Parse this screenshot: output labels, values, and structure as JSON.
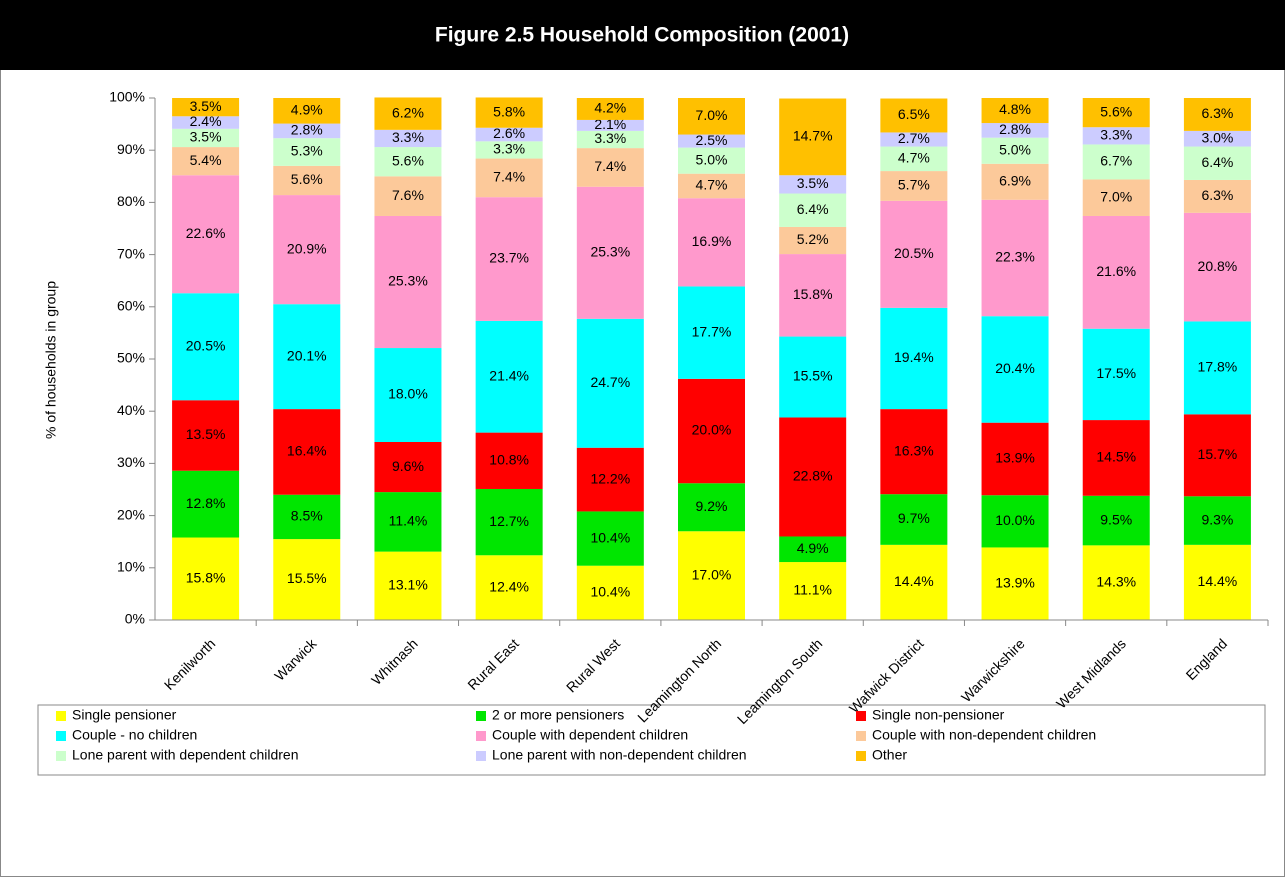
{
  "chart_data": {
    "type": "stacked_bar",
    "title": "Figure 2.5 Household Composition (2001)",
    "y_label": "% of households in group",
    "categories": [
      "Kenilworth",
      "Warwick",
      "Whitnash",
      "Rural East",
      "Rural West",
      "Leamington North",
      "Leamington South",
      "Wafwick District",
      "Warwickshire",
      "West Midlands",
      "England"
    ],
    "ylim": [
      0,
      100
    ],
    "yticks": [
      {
        "value": 0,
        "label": "0%"
      },
      {
        "value": 10,
        "label": "10%"
      },
      {
        "value": 20,
        "label": "20%"
      },
      {
        "value": 30,
        "label": "30%"
      },
      {
        "value": 40,
        "label": "40%"
      },
      {
        "value": 50,
        "label": "50%"
      },
      {
        "value": 60,
        "label": "60%"
      },
      {
        "value": 70,
        "label": "70%"
      },
      {
        "value": 80,
        "label": "80%"
      },
      {
        "value": 90,
        "label": "90%"
      },
      {
        "value": 100,
        "label": "100%"
      }
    ],
    "series": [
      {
        "name": "Single pensioner",
        "color": "#ffff00",
        "values": [
          15.8,
          15.5,
          13.1,
          12.4,
          10.4,
          17.0,
          11.1,
          14.4,
          13.9,
          14.3,
          14.4
        ],
        "value_labels": [
          "15.8%",
          "15.5%",
          "13.1%",
          "12.4%",
          "10.4%",
          "17.0%",
          "11.1%",
          "14.4%",
          "13.9%",
          "14.3%",
          "14.4%"
        ]
      },
      {
        "name": "2 or more pensioners",
        "color": "#00e600",
        "values": [
          12.8,
          8.5,
          11.4,
          12.7,
          10.4,
          9.2,
          4.9,
          9.7,
          10.0,
          9.5,
          9.3
        ],
        "value_labels": [
          "12.8%",
          "8.5%",
          "11.4%",
          "12.7%",
          "10.4%",
          "9.2%",
          "4.9%",
          "9.7%",
          "10.0%",
          "9.5%",
          "9.3%"
        ]
      },
      {
        "name": "Single non-pensioner",
        "color": "#ff0000",
        "values": [
          13.5,
          16.4,
          9.6,
          10.8,
          12.2,
          20.0,
          22.8,
          16.3,
          13.9,
          14.5,
          15.7
        ],
        "value_labels": [
          "13.5%",
          "16.4%",
          "9.6%",
          "10.8%",
          "12.2%",
          "20.0%",
          "22.8%",
          "16.3%",
          "13.9%",
          "14.5%",
          "15.7%"
        ]
      },
      {
        "name": "Couple - no children",
        "color": "#00ffff",
        "values": [
          20.5,
          20.1,
          18.0,
          21.4,
          24.7,
          17.7,
          15.5,
          19.4,
          20.4,
          17.5,
          17.8
        ],
        "value_labels": [
          "20.5%",
          "20.1%",
          "18.0%",
          "21.4%",
          "24.7%",
          "17.7%",
          "15.5%",
          "19.4%",
          "20.4%",
          "17.5%",
          "17.8%"
        ]
      },
      {
        "name": "Couple with dependent children",
        "color": "#ff99cc",
        "values": [
          22.6,
          20.9,
          25.3,
          23.7,
          25.3,
          16.9,
          15.8,
          20.5,
          22.3,
          21.6,
          20.8
        ],
        "value_labels": [
          "22.6%",
          "20.9%",
          "25.3%",
          "23.7%",
          "25.3%",
          "16.9%",
          "15.8%",
          "20.5%",
          "22.3%",
          "21.6%",
          "20.8%"
        ]
      },
      {
        "name": "Couple with non-dependent children",
        "color": "#fcc99a",
        "values": [
          5.4,
          5.6,
          7.6,
          7.4,
          7.4,
          4.7,
          5.2,
          5.7,
          6.9,
          7.0,
          6.3
        ],
        "value_labels": [
          "5.4%",
          "5.6%",
          "7.6%",
          "7.4%",
          "7.4%",
          "4.7%",
          "5.2%",
          "5.7%",
          "6.9%",
          "7.0%",
          "6.3%"
        ]
      },
      {
        "name": "Lone parent with dependent children",
        "color": "#ccffcc",
        "values": [
          3.5,
          5.3,
          5.6,
          3.3,
          3.3,
          5.0,
          6.4,
          4.7,
          5.0,
          6.7,
          6.4
        ],
        "value_labels": [
          "3.5%",
          "5.3%",
          "5.6%",
          "3.3%",
          "3.3%",
          "5.0%",
          "6.4%",
          "4.7%",
          "5.0%",
          "6.7%",
          "6.4%"
        ]
      },
      {
        "name": "Lone parent with non-dependent children",
        "color": "#ccccff",
        "values": [
          2.4,
          2.8,
          3.3,
          2.6,
          2.1,
          2.5,
          3.5,
          2.7,
          2.8,
          3.3,
          3.0
        ],
        "value_labels": [
          "2.4%",
          "2.8%",
          "3.3%",
          "2.6%",
          "2.1%",
          "2.5%",
          "3.5%",
          "2.7%",
          "2.8%",
          "3.3%",
          "3.0%"
        ]
      },
      {
        "name": "Other",
        "color": "#ffc000",
        "values": [
          3.5,
          4.9,
          6.2,
          5.8,
          4.2,
          7.0,
          14.7,
          6.5,
          4.8,
          5.6,
          6.3
        ],
        "value_labels": [
          "3.5%",
          "4.9%",
          "6.2%",
          "5.8%",
          "4.2%",
          "7.0%",
          "14.7%",
          "6.5%",
          "4.8%",
          "5.6%",
          "6.3%"
        ]
      }
    ]
  }
}
